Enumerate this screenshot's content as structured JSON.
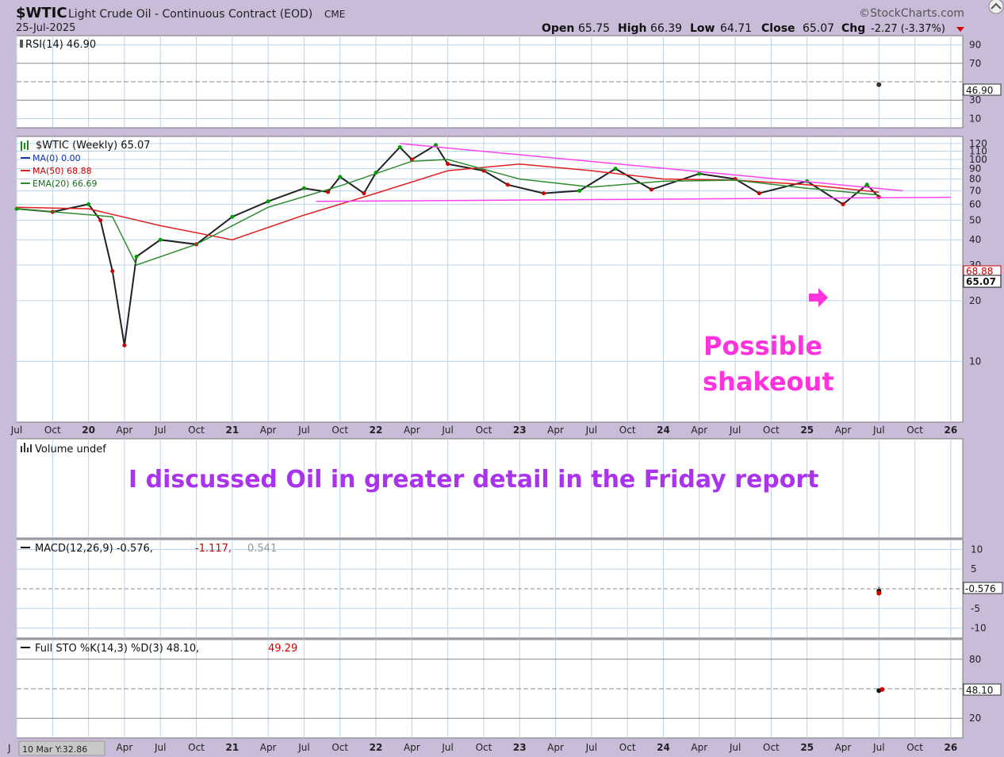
{
  "header": {
    "symbol": "$WTIC",
    "name": "Light Crude Oil - Continuous Contract (EOD)",
    "exchange": "CME",
    "date": "25-Jul-2025",
    "brand": "©StockCharts.com",
    "quote": {
      "open_label": "Open",
      "open": "65.75",
      "high_label": "High",
      "high": "66.39",
      "low_label": "Low",
      "low": "64.71",
      "close_label": "Close",
      "close": "65.07",
      "chg_label": "Chg",
      "chg": "-2.27 (-3.37%)"
    }
  },
  "colors": {
    "background": "#c9bcd9",
    "panel": "#ffffff",
    "grid": "#bcd3e6",
    "price_up": "#00a000",
    "price_down": "#d00000",
    "ma50": "#e02020",
    "ema20": "#2e8b2e",
    "trendline": "#ff44ee",
    "annotation_magenta": "#ff33dd",
    "annotation_purple": "#aa33ee"
  },
  "rsi_panel": {
    "label": "RSI(14) 46.90",
    "ticks": [
      "90",
      "70",
      "30",
      "10"
    ],
    "last_value": "46.90"
  },
  "price_panel": {
    "legend": [
      "$WTIC (Weekly) 65.07",
      "MA(0) 0.00",
      "MA(50) 68.88",
      "EMA(20) 66.69"
    ],
    "ticks": [
      "120",
      "110",
      "100",
      "90",
      "80",
      "70",
      "60",
      "50",
      "40",
      "30",
      "20",
      "10"
    ],
    "last_ma50": "68.88",
    "last_close": "65.07"
  },
  "volume_panel": {
    "label": "Volume undef"
  },
  "macd_panel": {
    "label_main": "MACD(12,26,9) -0.576,",
    "label_signal": "-1.117,",
    "label_hist": "0.541",
    "ticks": [
      "10",
      "5",
      "-5",
      "-10"
    ],
    "last_value": "-0.576"
  },
  "sto_panel": {
    "label_main": "Full STO %K(14,3) %D(3) 48.10,",
    "label_d": "49.29",
    "ticks": [
      "80",
      "20"
    ],
    "last_value": "48.10"
  },
  "x_axis": {
    "labels": [
      "Jul",
      "Oct",
      "20",
      "Apr",
      "Jul",
      "Oct",
      "21",
      "Apr",
      "Jul",
      "Oct",
      "22",
      "Apr",
      "Jul",
      "Oct",
      "23",
      "Apr",
      "Jul",
      "Oct",
      "24",
      "Apr",
      "Jul",
      "Oct",
      "25",
      "Apr",
      "Jul",
      "Oct",
      "26"
    ],
    "bottom_first": "J",
    "cursor_readout": "10 Mar Y:32.86"
  },
  "annotations": {
    "shakeout_line1": "Possible",
    "shakeout_line2": "shakeout",
    "note": "I discussed Oil in greater detail in the Friday report"
  },
  "chart_data": {
    "type": "line",
    "title": "$WTIC Light Crude Oil - Continuous Contract (EOD)",
    "x_range": [
      "2019-07",
      "2026-01"
    ],
    "y_scale": "log",
    "ylim": [
      5,
      130
    ],
    "series": [
      {
        "name": "$WTIC (Weekly)",
        "points": [
          [
            "2019-07",
            57
          ],
          [
            "2019-10",
            55
          ],
          [
            "2020-01",
            60
          ],
          [
            "2020-02",
            50
          ],
          [
            "2020-03",
            28
          ],
          [
            "2020-04",
            12
          ],
          [
            "2020-05",
            33
          ],
          [
            "2020-07",
            40
          ],
          [
            "2020-10",
            38
          ],
          [
            "2021-01",
            52
          ],
          [
            "2021-04",
            62
          ],
          [
            "2021-07",
            72
          ],
          [
            "2021-09",
            69
          ],
          [
            "2021-10",
            82
          ],
          [
            "2021-12",
            68
          ],
          [
            "2022-01",
            86
          ],
          [
            "2022-03",
            115
          ],
          [
            "2022-04",
            100
          ],
          [
            "2022-06",
            118
          ],
          [
            "2022-07",
            95
          ],
          [
            "2022-10",
            88
          ],
          [
            "2022-12",
            75
          ],
          [
            "2023-03",
            68
          ],
          [
            "2023-06",
            70
          ],
          [
            "2023-09",
            90
          ],
          [
            "2023-12",
            71
          ],
          [
            "2024-04",
            85
          ],
          [
            "2024-07",
            80
          ],
          [
            "2024-09",
            68
          ],
          [
            "2025-01",
            78
          ],
          [
            "2025-04",
            60
          ],
          [
            "2025-06",
            75
          ],
          [
            "2025-07",
            65.07
          ]
        ]
      },
      {
        "name": "MA(50)",
        "points": [
          [
            "2019-07",
            58
          ],
          [
            "2020-01",
            57
          ],
          [
            "2020-07",
            47
          ],
          [
            "2021-01",
            40
          ],
          [
            "2021-07",
            53
          ],
          [
            "2022-01",
            68
          ],
          [
            "2022-07",
            88
          ],
          [
            "2023-01",
            95
          ],
          [
            "2023-07",
            88
          ],
          [
            "2024-01",
            80
          ],
          [
            "2024-07",
            79
          ],
          [
            "2025-01",
            75
          ],
          [
            "2025-07",
            68.88
          ]
        ]
      },
      {
        "name": "EMA(20)",
        "points": [
          [
            "2019-07",
            57
          ],
          [
            "2020-03",
            52
          ],
          [
            "2020-05",
            30
          ],
          [
            "2020-10",
            38
          ],
          [
            "2021-04",
            58
          ],
          [
            "2021-10",
            74
          ],
          [
            "2022-04",
            98
          ],
          [
            "2022-07",
            100
          ],
          [
            "2023-01",
            80
          ],
          [
            "2023-07",
            73
          ],
          [
            "2024-01",
            78
          ],
          [
            "2024-07",
            79
          ],
          [
            "2025-01",
            72
          ],
          [
            "2025-07",
            66.69
          ]
        ]
      }
    ],
    "trendlines": [
      {
        "from": [
          "2022-03",
          120
        ],
        "to": [
          "2025-09",
          70
        ]
      },
      {
        "from": [
          "2021-08",
          62
        ],
        "to": [
          "2026-01",
          65
        ]
      }
    ],
    "indicators": {
      "RSI(14)": 46.9,
      "MACD": -0.576,
      "MACD_signal": -1.117,
      "MACD_hist": 0.541,
      "STO_K": 48.1,
      "STO_D": 49.29
    }
  }
}
